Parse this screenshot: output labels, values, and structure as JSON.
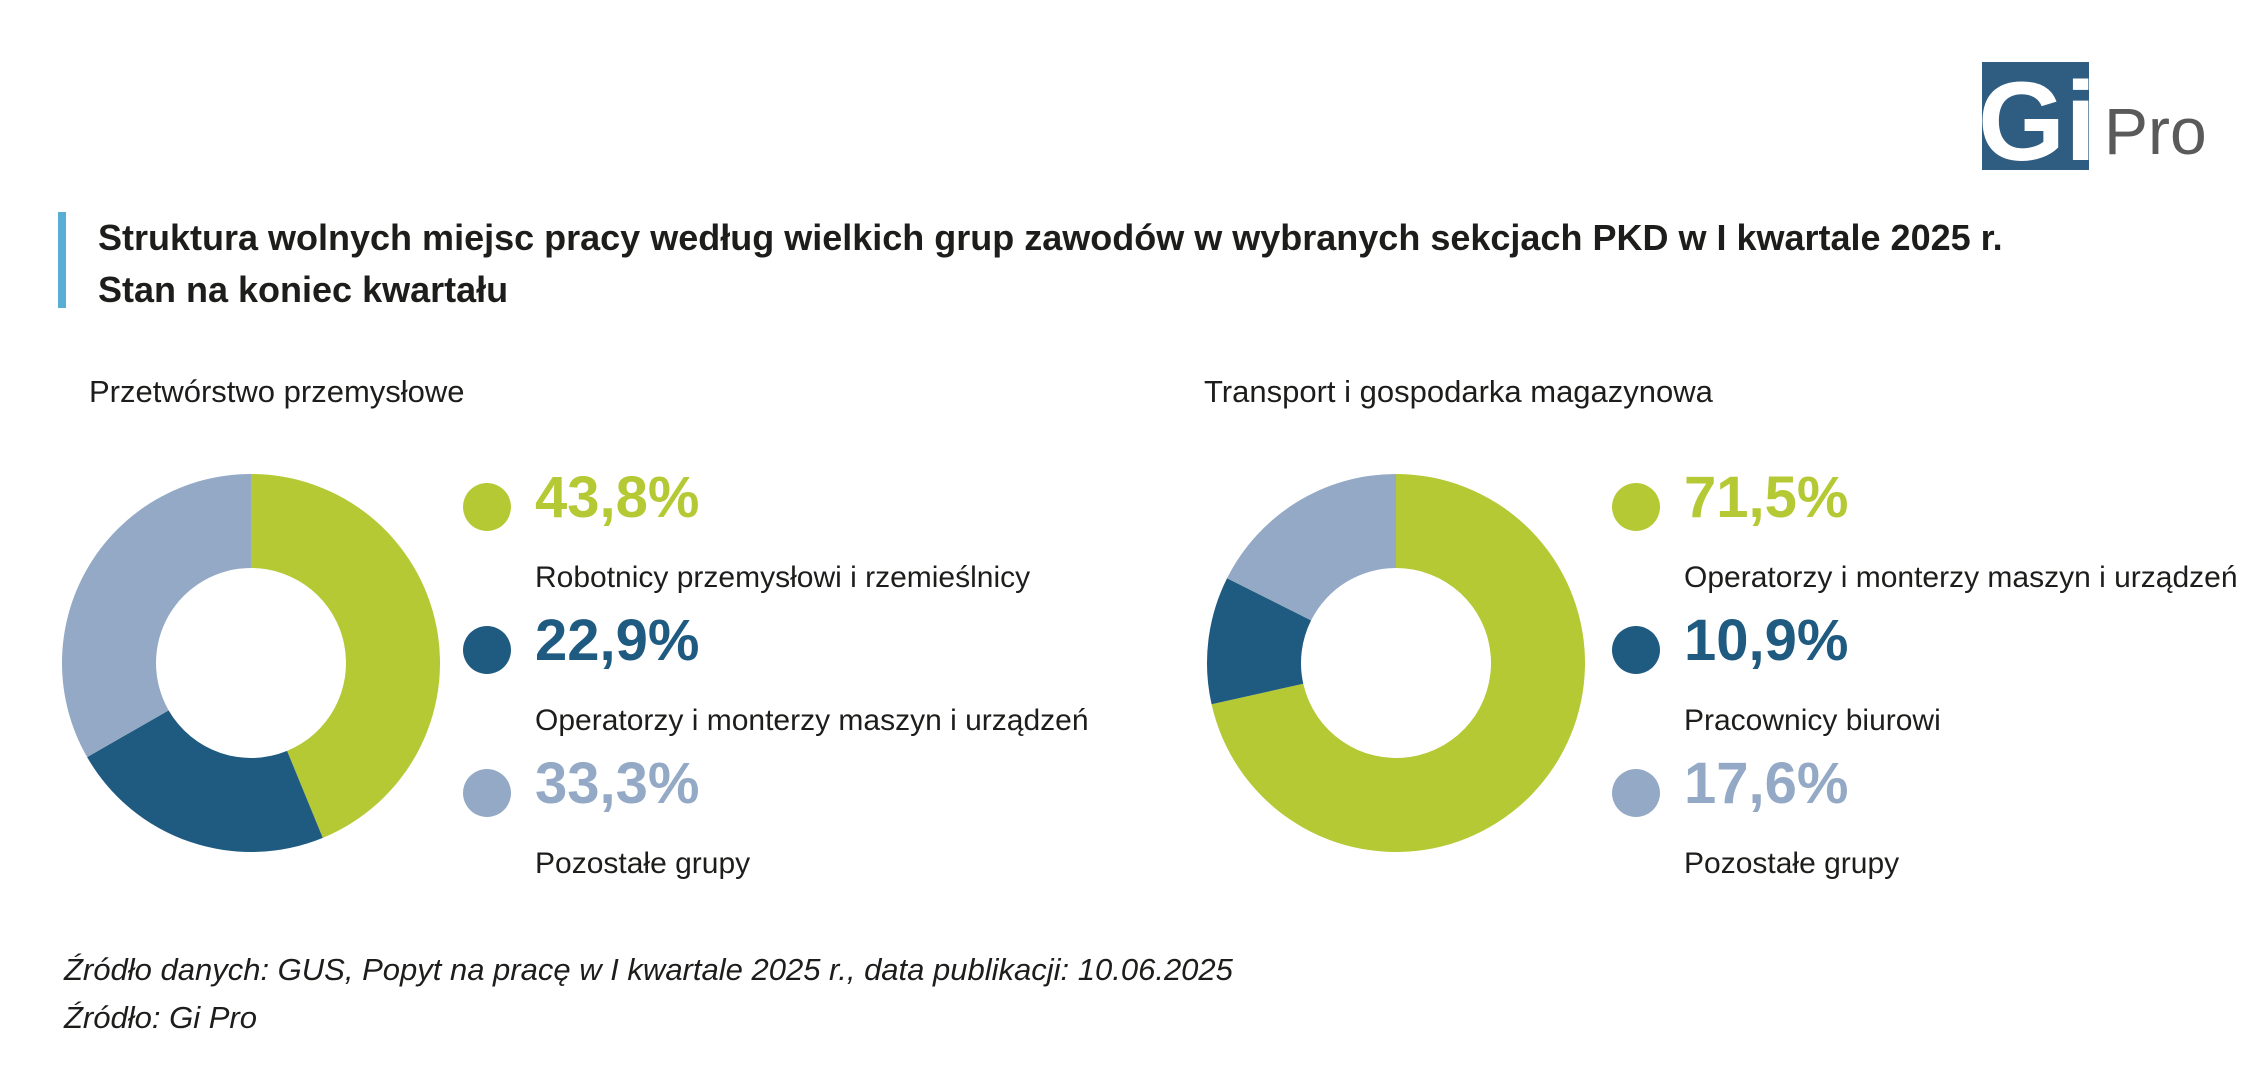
{
  "header": {
    "title_line1": "Struktura wolnych miejsc pracy według wielkich grup zawodów w wybranych sekcjach PKD w I kwartale 2025 r.",
    "title_line2": "Stan na koniec kwartału"
  },
  "logo": {
    "mark": "Gi",
    "text": "Pro",
    "color": "#2f5d82"
  },
  "colors": {
    "green": "#b5c934",
    "dark_blue": "#1f5a80",
    "light_blue": "#93a9c5",
    "accent_bar": "#5aaed6"
  },
  "chart_data": [
    {
      "type": "pie",
      "title": "Przetwórstwo przemysłowe",
      "slices": [
        {
          "label": "Robotnicy przemysłowi i rzemieślnicy",
          "value": 43.8,
          "display": "43,8%",
          "color": "#b5c934"
        },
        {
          "label": "Operatorzy i monterzy maszyn i urządzeń",
          "value": 22.9,
          "display": "22,9%",
          "color": "#1f5a80"
        },
        {
          "label": "Pozostałe grupy",
          "value": 33.3,
          "display": "33,3%",
          "color": "#93a9c5"
        }
      ]
    },
    {
      "type": "pie",
      "title": "Transport i gospodarka magazynowa",
      "slices": [
        {
          "label": "Operatorzy i monterzy maszyn i urządzeń",
          "value": 71.5,
          "display": "71,5%",
          "color": "#b5c934"
        },
        {
          "label": "Pracownicy biurowi",
          "value": 10.9,
          "display": "10,9%",
          "color": "#1f5a80"
        },
        {
          "label": "Pozostałe grupy",
          "value": 17.6,
          "display": "17,6%",
          "color": "#93a9c5"
        }
      ]
    }
  ],
  "footer": {
    "source_data": "Źródło danych: GUS, Popyt na pracę w I kwartale 2025 r., data publikacji:  10.06.2025",
    "source": "Źródło: Gi Pro"
  }
}
